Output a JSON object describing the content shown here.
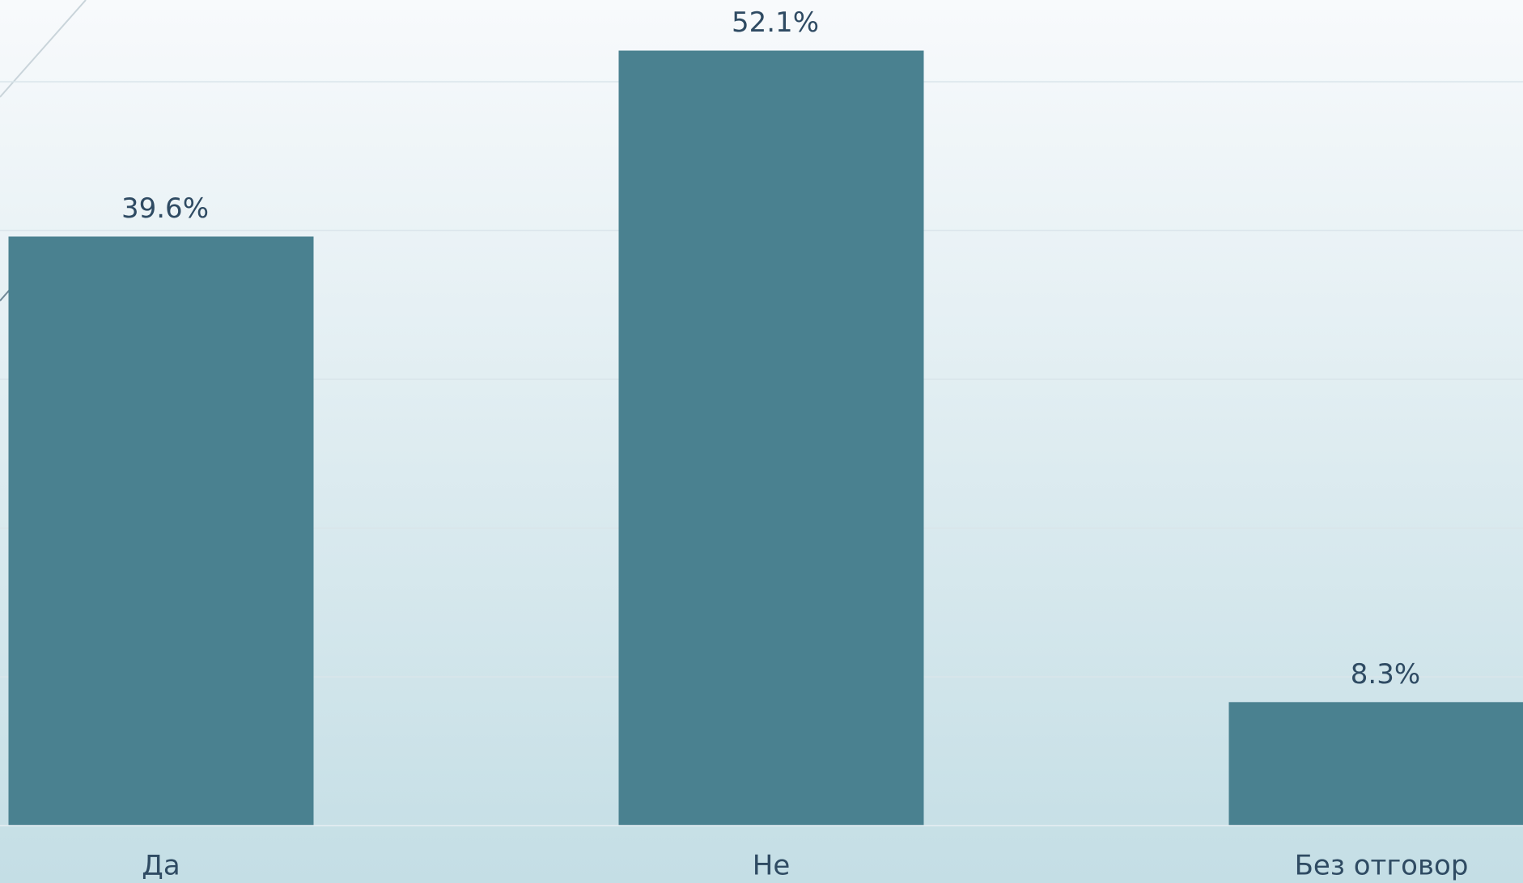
{
  "chart_data": {
    "type": "bar",
    "categories": [
      "Да",
      "Не",
      "Без отговор"
    ],
    "values": [
      39.6,
      52.1,
      8.3
    ],
    "value_labels": [
      "39.6%",
      "52.1%",
      "8.3%"
    ],
    "color": "#4a8190",
    "ylim": [
      0,
      55.5
    ],
    "yticks": [
      0,
      10,
      20,
      30,
      40,
      50
    ],
    "grid": true
  }
}
